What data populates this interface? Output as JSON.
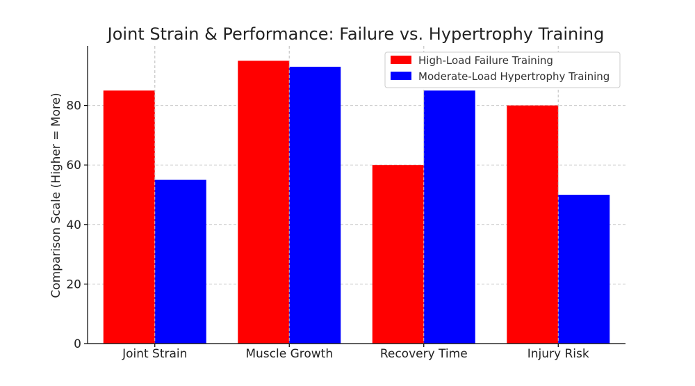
{
  "chart_data": {
    "type": "bar",
    "title": "Joint Strain & Performance: Failure vs. Hypertrophy Training",
    "xlabel": "",
    "ylabel": "Comparison Scale (Higher = More)",
    "categories": [
      "Joint Strain",
      "Muscle Growth",
      "Recovery Time",
      "Injury Risk"
    ],
    "series": [
      {
        "name": "High-Load Failure Training",
        "color": "#ff0000",
        "values": [
          85,
          95,
          60,
          80
        ]
      },
      {
        "name": "Moderate-Load Hypertrophy Training",
        "color": "#0000ff",
        "values": [
          55,
          93,
          85,
          50
        ]
      }
    ],
    "ylim": [
      0,
      100
    ],
    "yticks": [
      0,
      20,
      40,
      60,
      80
    ],
    "grid": true,
    "legend_position": "top-right"
  }
}
